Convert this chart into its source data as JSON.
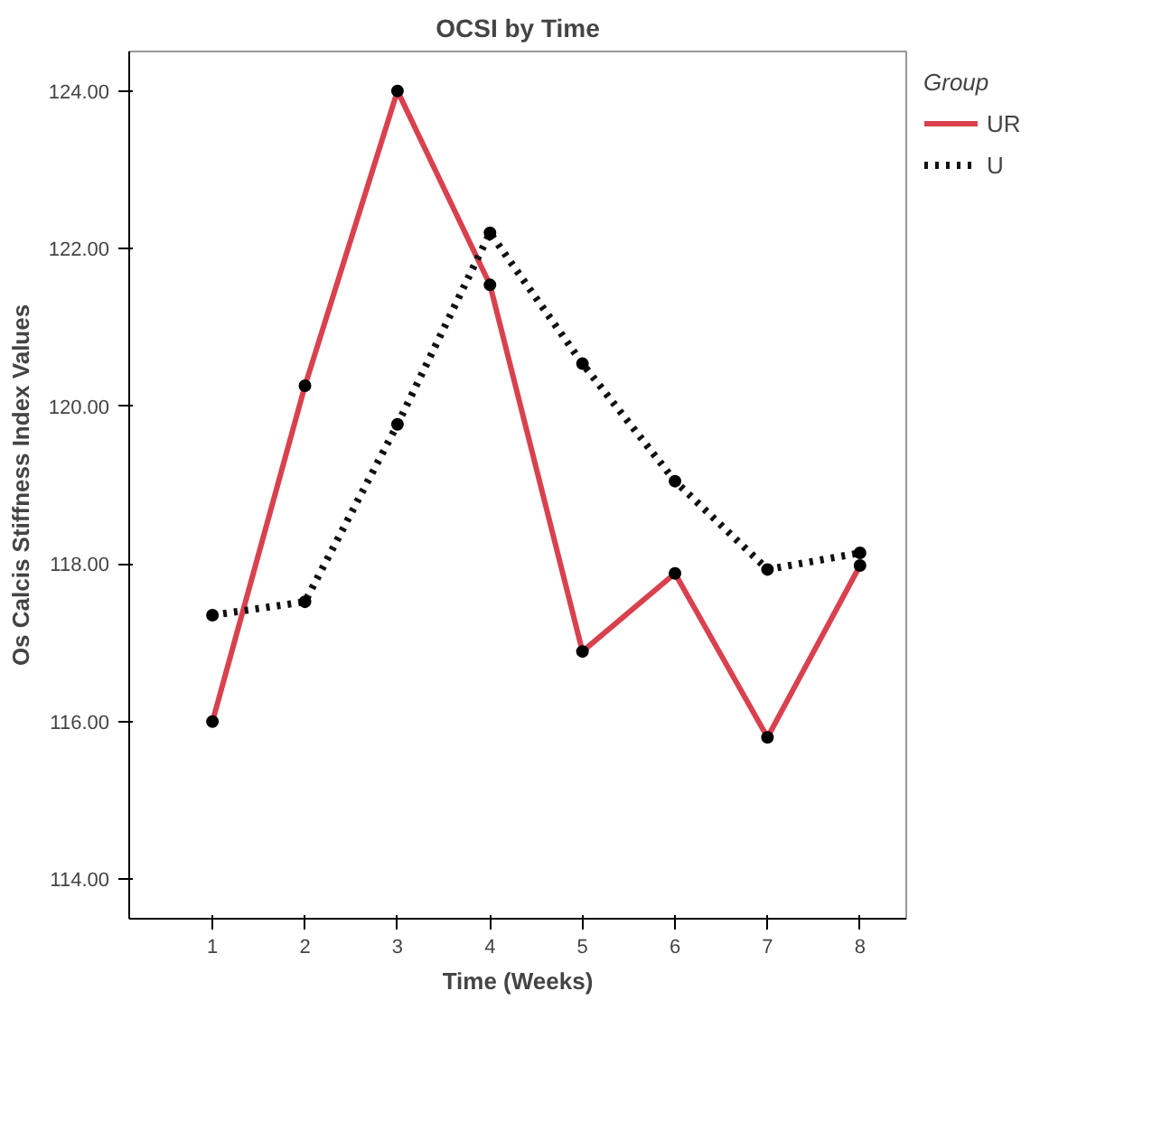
{
  "chart_data": {
    "type": "line",
    "title": "OCSI by Time",
    "xlabel": "Time (Weeks)",
    "ylabel": "Os Calcis Stiffness Index Values",
    "legend_title": "Group",
    "x": [
      1,
      2,
      3,
      4,
      5,
      6,
      7,
      8
    ],
    "series": [
      {
        "name": "UR",
        "color": "#d9414e",
        "line_style": "solid",
        "values": [
          116.0,
          120.26,
          124.0,
          121.54,
          116.89,
          117.88,
          115.8,
          117.98
        ]
      },
      {
        "name": "U",
        "color": "#111111",
        "line_style": "dotted",
        "values": [
          117.35,
          117.52,
          119.77,
          122.2,
          120.54,
          119.05,
          117.93,
          118.14
        ]
      }
    ],
    "xlim": [
      0.1,
      8.5
    ],
    "xticks": [
      1,
      2,
      3,
      4,
      5,
      6,
      7,
      8
    ],
    "ylim": [
      113.5,
      124.5
    ],
    "yticks": [
      {
        "value": 114,
        "label": "114.00"
      },
      {
        "value": 116,
        "label": "116.00"
      },
      {
        "value": 118,
        "label": "118.00"
      },
      {
        "value": 120,
        "label": "120.00"
      },
      {
        "value": 122,
        "label": "122.00"
      },
      {
        "value": 124,
        "label": "124.00"
      }
    ],
    "marker": "circle",
    "grid": false,
    "legend": "top right"
  }
}
